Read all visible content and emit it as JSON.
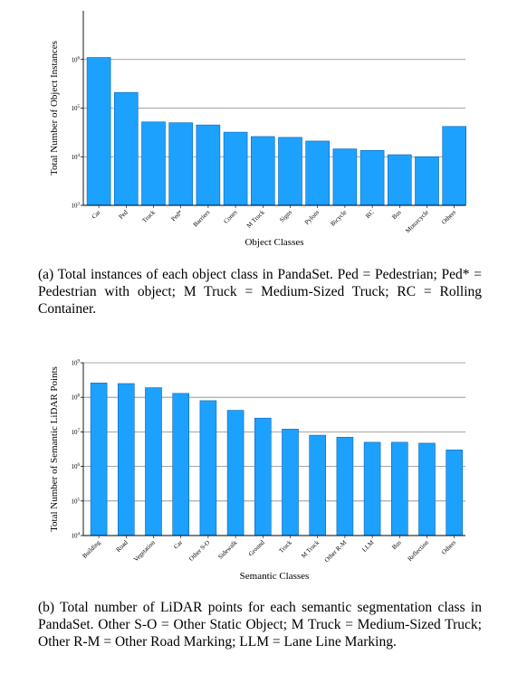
{
  "chart_data": [
    {
      "type": "bar",
      "scale": "log",
      "xlabel": "Object Classes",
      "ylabel": "Total Number of Object Instances",
      "categories": [
        "Car",
        "Ped",
        "Truck",
        "Ped*",
        "Barriers",
        "Cones",
        "M Truck",
        "Signs",
        "Pylons",
        "Bicycle",
        "RC",
        "Bus",
        "Motorcycle",
        "Others"
      ],
      "values": [
        1100000,
        210000,
        52000,
        50000,
        45000,
        32000,
        26000,
        25000,
        21000,
        14500,
        13500,
        11000,
        10000,
        42000
      ],
      "ylim": [
        1000,
        10000000
      ],
      "yticks": [
        1000,
        10000,
        100000,
        1000000
      ],
      "ytick_labels": [
        {
          "base": "10",
          "exp": "3"
        },
        {
          "base": "10",
          "exp": "4"
        },
        {
          "base": "10",
          "exp": "5"
        },
        {
          "base": "10",
          "exp": "6"
        }
      ],
      "color": "#1da1ff",
      "grid": true,
      "caption": "(a) Total instances of each object class in PandaSet. Ped = Pedestrian; Ped* = Pedestrian with object; M Truck = Medium-Sized Truck; RC = Rolling Container."
    },
    {
      "type": "bar",
      "scale": "log",
      "xlabel": "Semantic Classes",
      "ylabel": "Total Number of Semantic LiDAR Points",
      "categories": [
        "Building",
        "Road",
        "Vegetation",
        "Car",
        "Other S-O",
        "Sidewalk",
        "Ground",
        "Truck",
        "M Truck",
        "Other R-M",
        "LLM",
        "Bus",
        "Reflection",
        "Others"
      ],
      "values": [
        260000000,
        250000000,
        190000000,
        130000000,
        80000000,
        42000000,
        25000000,
        12000000,
        8000000,
        7000000,
        5000000,
        5000000,
        4700000,
        3000000
      ],
      "ylim": [
        10000,
        1000000000
      ],
      "yticks": [
        10000,
        100000,
        1000000,
        10000000,
        100000000,
        1000000000
      ],
      "ytick_labels": [
        {
          "base": "10",
          "exp": "4"
        },
        {
          "base": "10",
          "exp": "5"
        },
        {
          "base": "10",
          "exp": "6"
        },
        {
          "base": "10",
          "exp": "7"
        },
        {
          "base": "10",
          "exp": "8"
        },
        {
          "base": "10",
          "exp": "9"
        }
      ],
      "color": "#1da1ff",
      "grid": true,
      "caption": "(b) Total number of LiDAR points for each semantic segmentation class in PandaSet. Other S-O = Other Static Object; M Truck = Medium-Sized Truck; Other R-M = Other Road Marking; LLM = Lane Line Marking."
    }
  ]
}
